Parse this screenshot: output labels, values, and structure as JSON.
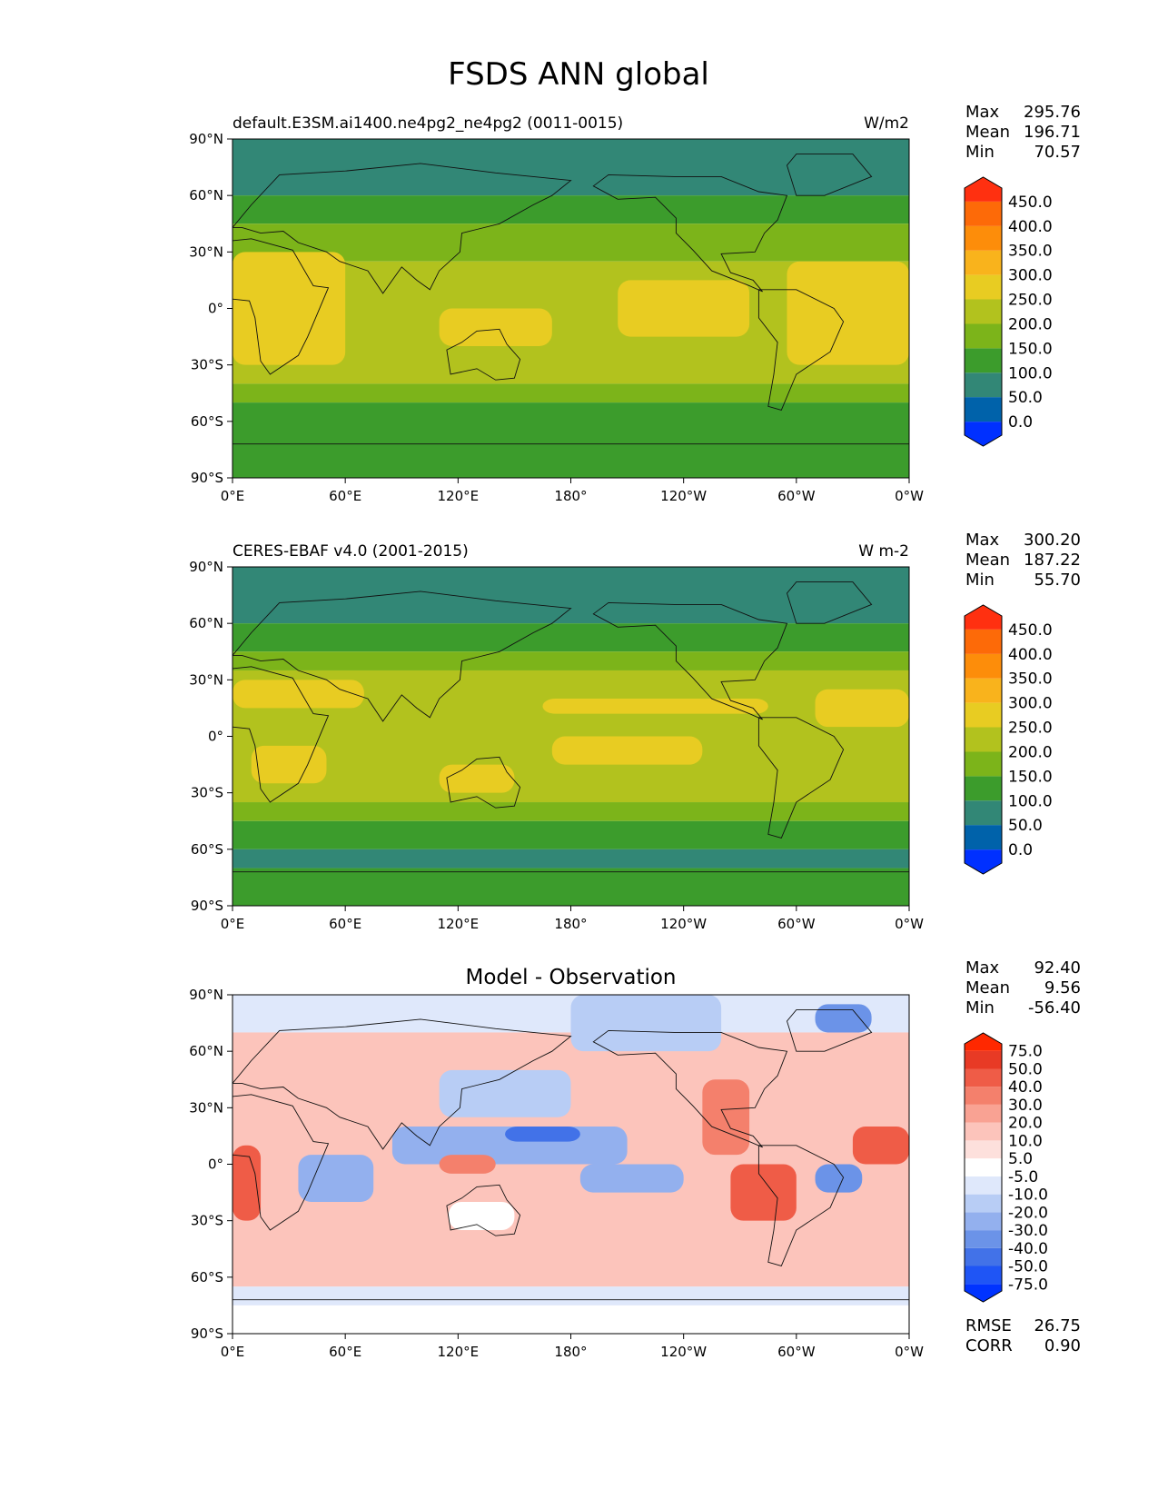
{
  "figure": {
    "title": "FSDS ANN global"
  },
  "chart_data": [
    {
      "type": "heatmap",
      "title_left": "default.E3SM.ai1400.ne4pg2_ne4pg2 (0011-0015)",
      "title_center": "",
      "title_right": "W/m2",
      "x_ticks": [
        "0°E",
        "60°E",
        "120°E",
        "180°",
        "120°W",
        "60°W",
        "0°W"
      ],
      "y_ticks": [
        "90°N",
        "60°N",
        "30°N",
        "0°",
        "30°S",
        "60°S",
        "90°S"
      ],
      "xlim": [
        0,
        360
      ],
      "ylim": [
        -90,
        90
      ],
      "stats": [
        {
          "label": "Max",
          "value": "295.76"
        },
        {
          "label": "Mean",
          "value": "196.71"
        },
        {
          "label": "Min",
          "value": "70.57"
        }
      ],
      "colorbar": {
        "labels": [
          "450.0",
          "400.0",
          "350.0",
          "300.0",
          "250.0",
          "200.0",
          "150.0",
          "100.0",
          "50.0",
          "0.0"
        ],
        "colors": [
          "#0030ff",
          "#0062aa",
          "#328776",
          "#3c9c2c",
          "#7cb41a",
          "#b2c21e",
          "#e8cc22",
          "#f9b31c",
          "#fd8d0a",
          "#fd6a08",
          "#ff3010"
        ]
      },
      "bands": [
        {
          "lat": [
            60,
            90
          ],
          "color": "#328776"
        },
        {
          "lat": [
            45,
            60
          ],
          "color": "#3c9c2c"
        },
        {
          "lat": [
            25,
            45
          ],
          "color": "#7cb41a"
        },
        {
          "lat": [
            -40,
            25
          ],
          "color": "#b2c21e"
        },
        {
          "lat": [
            -50,
            -40
          ],
          "color": "#7cb41a"
        },
        {
          "lat": [
            -90,
            -50
          ],
          "color": "#3c9c2c"
        }
      ],
      "patches": [
        {
          "lon": 0,
          "lat": 30,
          "w": 60,
          "h": -60,
          "color": "#e8cc22"
        },
        {
          "lon": 110,
          "lat": 0,
          "w": 60,
          "h": -20,
          "color": "#e8cc22"
        },
        {
          "lon": 205,
          "lat": 15,
          "w": 70,
          "h": -30,
          "color": "#e8cc22"
        },
        {
          "lon": 295,
          "lat": 25,
          "w": 65,
          "h": -55,
          "color": "#e8cc22"
        }
      ],
      "residual": null
    },
    {
      "type": "heatmap",
      "title_left": "CERES-EBAF v4.0 (2001-2015)",
      "title_center": "",
      "title_right": "W m-2",
      "x_ticks": [
        "0°E",
        "60°E",
        "120°E",
        "180°",
        "120°W",
        "60°W",
        "0°W"
      ],
      "y_ticks": [
        "90°N",
        "60°N",
        "30°N",
        "0°",
        "30°S",
        "60°S",
        "90°S"
      ],
      "xlim": [
        0,
        360
      ],
      "ylim": [
        -90,
        90
      ],
      "stats": [
        {
          "label": "Max",
          "value": "300.20"
        },
        {
          "label": "Mean",
          "value": "187.22"
        },
        {
          "label": "Min",
          "value": "55.70"
        }
      ],
      "colorbar": {
        "labels": [
          "450.0",
          "400.0",
          "350.0",
          "300.0",
          "250.0",
          "200.0",
          "150.0",
          "100.0",
          "50.0",
          "0.0"
        ],
        "colors": [
          "#0030ff",
          "#0062aa",
          "#328776",
          "#3c9c2c",
          "#7cb41a",
          "#b2c21e",
          "#e8cc22",
          "#f9b31c",
          "#fd8d0a",
          "#fd6a08",
          "#ff3010"
        ]
      },
      "bands": [
        {
          "lat": [
            60,
            90
          ],
          "color": "#328776"
        },
        {
          "lat": [
            45,
            60
          ],
          "color": "#3c9c2c"
        },
        {
          "lat": [
            35,
            45
          ],
          "color": "#7cb41a"
        },
        {
          "lat": [
            -35,
            35
          ],
          "color": "#b2c21e"
        },
        {
          "lat": [
            -45,
            -35
          ],
          "color": "#7cb41a"
        },
        {
          "lat": [
            -60,
            -45
          ],
          "color": "#3c9c2c"
        },
        {
          "lat": [
            -70,
            -60
          ],
          "color": "#328776"
        },
        {
          "lat": [
            -90,
            -70
          ],
          "color": "#3c9c2c"
        }
      ],
      "patches": [
        {
          "lon": 0,
          "lat": 30,
          "w": 70,
          "h": -15,
          "color": "#e8cc22"
        },
        {
          "lon": 10,
          "lat": -5,
          "w": 40,
          "h": -20,
          "color": "#e8cc22"
        },
        {
          "lon": 110,
          "lat": -15,
          "w": 40,
          "h": -15,
          "color": "#e8cc22"
        },
        {
          "lon": 170,
          "lat": 0,
          "w": 80,
          "h": -15,
          "color": "#e8cc22"
        },
        {
          "lon": 165,
          "lat": 20,
          "w": 120,
          "h": -8,
          "color": "#e8cc22"
        },
        {
          "lon": 310,
          "lat": 25,
          "w": 50,
          "h": -20,
          "color": "#e8cc22"
        }
      ],
      "residual": null
    },
    {
      "type": "heatmap",
      "title_left": "",
      "title_center": "Model - Observation",
      "title_right": "",
      "x_ticks": [
        "0°E",
        "60°E",
        "120°E",
        "180°",
        "120°W",
        "60°W",
        "0°W"
      ],
      "y_ticks": [
        "90°N",
        "60°N",
        "30°N",
        "0°",
        "30°S",
        "60°S",
        "90°S"
      ],
      "xlim": [
        0,
        360
      ],
      "ylim": [
        -90,
        90
      ],
      "stats": [
        {
          "label": "Max",
          "value": "92.40"
        },
        {
          "label": "Mean",
          "value": "9.56"
        },
        {
          "label": "Min",
          "value": "-56.40"
        }
      ],
      "colorbar": {
        "labels": [
          "75.0",
          "50.0",
          "40.0",
          "30.0",
          "20.0",
          "10.0",
          "5.0",
          "-5.0",
          "-10.0",
          "-20.0",
          "-30.0",
          "-40.0",
          "-50.0",
          "-75.0"
        ],
        "colors": [
          "#0033ff",
          "#1f55f5",
          "#4272e8",
          "#6b93e8",
          "#93b0ee",
          "#b8cdf5",
          "#dfe8fb",
          "#ffffff",
          "#fde0dc",
          "#fcc4bb",
          "#f9a293",
          "#f4806c",
          "#ef5c47",
          "#e83a25",
          "#ff2800"
        ]
      },
      "bands": [
        {
          "lat": [
            70,
            90
          ],
          "color": "#dfe8fb"
        },
        {
          "lat": [
            -65,
            70
          ],
          "color": "#fcc4bb"
        },
        {
          "lat": [
            -75,
            -65
          ],
          "color": "#dfe8fb"
        },
        {
          "lat": [
            -90,
            -75
          ],
          "color": "#ffffff"
        }
      ],
      "patches": [
        {
          "lon": 180,
          "lat": 90,
          "w": 80,
          "h": -30,
          "color": "#b8cdf5"
        },
        {
          "lon": 310,
          "lat": 85,
          "w": 30,
          "h": -15,
          "color": "#6b93e8"
        },
        {
          "lon": 110,
          "lat": 50,
          "w": 70,
          "h": -25,
          "color": "#b8cdf5"
        },
        {
          "lon": 85,
          "lat": 20,
          "w": 125,
          "h": -20,
          "color": "#93b0ee"
        },
        {
          "lon": 145,
          "lat": 20,
          "w": 40,
          "h": -8,
          "color": "#4272e8"
        },
        {
          "lon": 185,
          "lat": 0,
          "w": 55,
          "h": -15,
          "color": "#93b0ee"
        },
        {
          "lon": 35,
          "lat": 5,
          "w": 40,
          "h": -25,
          "color": "#93b0ee"
        },
        {
          "lon": 0,
          "lat": 10,
          "w": 15,
          "h": -40,
          "color": "#ef5c47"
        },
        {
          "lon": 265,
          "lat": 0,
          "w": 35,
          "h": -30,
          "color": "#ef5c47"
        },
        {
          "lon": 250,
          "lat": 45,
          "w": 25,
          "h": -40,
          "color": "#f4806c"
        },
        {
          "lon": 110,
          "lat": 5,
          "w": 30,
          "h": -10,
          "color": "#f4806c"
        },
        {
          "lon": 310,
          "lat": 0,
          "w": 25,
          "h": -15,
          "color": "#6b93e8"
        },
        {
          "lon": 115,
          "lat": -20,
          "w": 35,
          "h": -15,
          "color": "#ffffff"
        },
        {
          "lon": 330,
          "lat": 20,
          "w": 30,
          "h": -20,
          "color": "#ef5c47"
        }
      ],
      "residual": {
        "rmse": "26.75",
        "corr": "0.90"
      }
    }
  ]
}
